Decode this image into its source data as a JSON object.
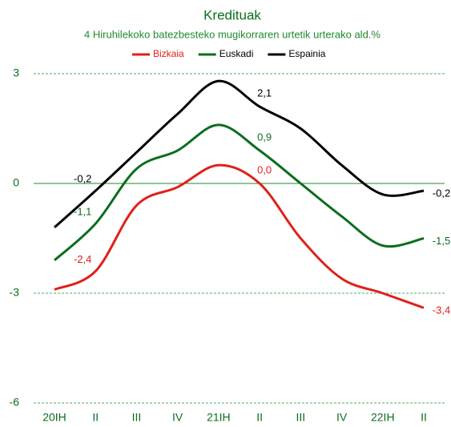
{
  "chart_data": {
    "type": "line",
    "title": "Kredituak",
    "subtitle": "4 Hiruhilekoko batezbesteko mugikorraren urtetik urterako ald.%",
    "categories": [
      "20IH",
      "II",
      "III",
      "IV",
      "21IH",
      "II",
      "III",
      "IV",
      "22IH",
      "II"
    ],
    "series": [
      {
        "name": "Bizkaia",
        "color": "#e0201b",
        "values": [
          -2.9,
          -2.4,
          -0.6,
          -0.1,
          0.5,
          0.0,
          -1.5,
          -2.6,
          -3.0,
          -3.4
        ],
        "value_labels": [
          null,
          "-2,4",
          null,
          null,
          null,
          "0,0",
          null,
          null,
          null,
          "-3,4"
        ]
      },
      {
        "name": "Euskadi",
        "color": "#0b6e1e",
        "values": [
          -2.1,
          -1.1,
          0.4,
          0.9,
          1.6,
          0.9,
          0.0,
          -0.9,
          -1.7,
          -1.5
        ],
        "value_labels": [
          null,
          "-1,1",
          null,
          null,
          null,
          "0,9",
          null,
          null,
          null,
          "-1,5"
        ]
      },
      {
        "name": "Espainia",
        "color": "#000000",
        "values": [
          -1.2,
          -0.2,
          0.85,
          1.9,
          2.8,
          2.1,
          1.5,
          0.5,
          -0.3,
          -0.2
        ],
        "value_labels": [
          null,
          "-0,2",
          null,
          null,
          null,
          "2,1",
          null,
          null,
          null,
          "-0,2"
        ]
      }
    ],
    "ylim": [
      -6,
      3
    ],
    "yticks": [
      -6,
      -3,
      0,
      3
    ],
    "grid": true
  }
}
